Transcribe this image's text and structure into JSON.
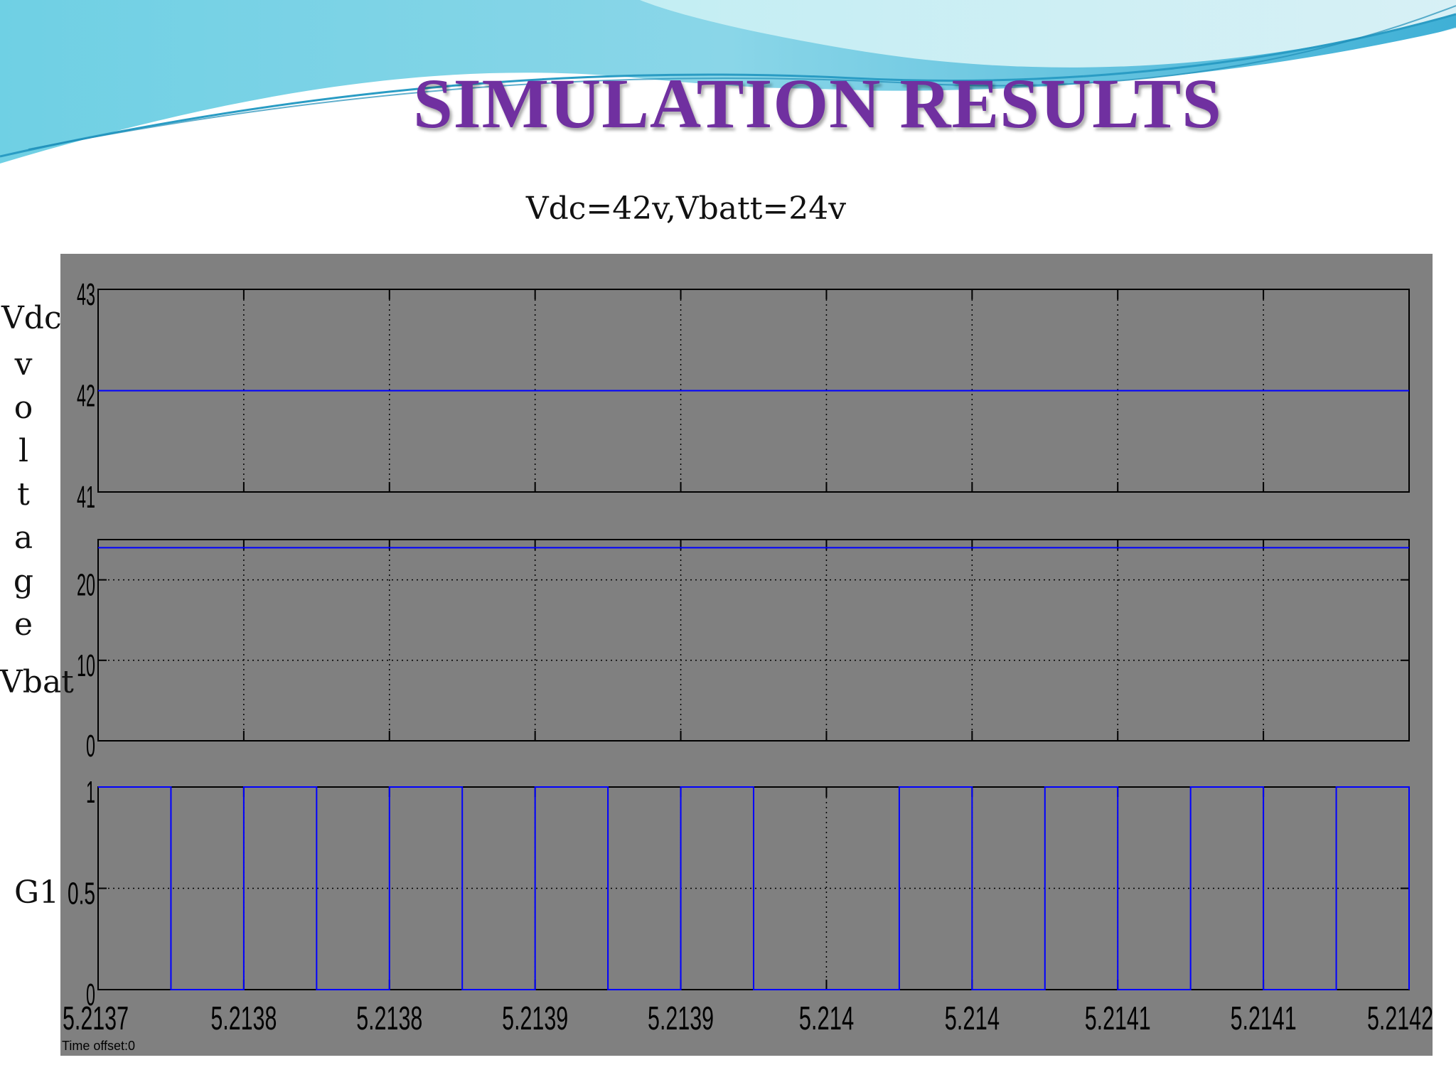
{
  "slide": {
    "title": "SIMULATION RESULTS",
    "subtitle": "Vdc=42v,Vbatt=24v",
    "side_labels": {
      "vdc": "Vdc",
      "voltage": [
        "v",
        "o",
        "l",
        "t",
        "a",
        "g",
        "e"
      ],
      "vbat": "Vbat",
      "g1": "G1"
    },
    "time_offset_label": "Time offset:",
    "time_offset_value": "0"
  },
  "colors": {
    "title": "#7030a0",
    "scope_background": "#808080",
    "trace": "#0000ff",
    "axes": "#000000",
    "banner_light": "#a8e4ee",
    "banner_dark": "#4ab8d6"
  },
  "chart_data": [
    {
      "type": "line",
      "title": "",
      "xlabel": "",
      "ylabel": "Vdc",
      "xlim": [
        5.2137,
        5.21415
      ],
      "ylim": [
        41,
        43
      ],
      "yticks": [
        "41",
        "42",
        "43"
      ],
      "grid": true,
      "series": [
        {
          "x": [
            5.2137,
            5.21415
          ],
          "y": [
            42,
            42
          ]
        }
      ]
    },
    {
      "type": "line",
      "title": "",
      "xlabel": "",
      "ylabel": "Vbat",
      "xlim": [
        5.2137,
        5.21415
      ],
      "ylim": [
        0,
        25
      ],
      "yticks": [
        "0",
        "10",
        "20"
      ],
      "grid": true,
      "series": [
        {
          "x": [
            5.2137,
            5.21415
          ],
          "y": [
            24,
            24
          ]
        }
      ]
    },
    {
      "type": "line",
      "title": "",
      "xlabel": "",
      "ylabel": "G1",
      "xlim": [
        5.2137,
        5.21415
      ],
      "ylim": [
        0,
        1
      ],
      "yticks": [
        "0",
        "0.5",
        "1"
      ],
      "xticks": [
        "5.2137",
        "5.2138",
        "5.2138",
        "5.2139",
        "5.2139",
        "5.214",
        "5.214",
        "5.2141",
        "5.2141",
        "5.2142"
      ],
      "grid": true,
      "series": [
        {
          "step": true,
          "x": [
            5.2137,
            5.213725,
            5.21375,
            5.213775,
            5.2138,
            5.213825,
            5.21385,
            5.213875,
            5.2139,
            5.213925,
            5.21395,
            5.213975,
            5.214,
            5.214025,
            5.21405,
            5.214075,
            5.2141,
            5.214125,
            5.21415
          ],
          "y": [
            1,
            0,
            1,
            0,
            1,
            0,
            1,
            0,
            1,
            0,
            0,
            1,
            0,
            1,
            0,
            1,
            0,
            1,
            0
          ]
        }
      ]
    }
  ]
}
